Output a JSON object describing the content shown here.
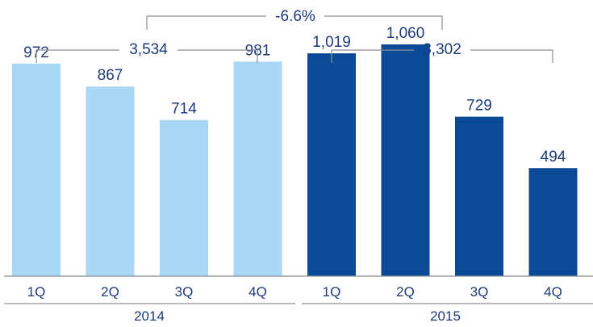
{
  "chart_data": {
    "type": "bar",
    "categories": [
      "1Q",
      "2Q",
      "3Q",
      "4Q",
      "1Q",
      "2Q",
      "3Q",
      "4Q"
    ],
    "groups": [
      {
        "name": "2014",
        "categories": [
          "1Q",
          "2Q",
          "3Q",
          "4Q"
        ],
        "values": [
          972,
          867,
          714,
          981
        ],
        "total": "3,534",
        "color": "#a8d8f5"
      },
      {
        "name": "2015",
        "categories": [
          "1Q",
          "2Q",
          "3Q",
          "4Q"
        ],
        "values": [
          1019,
          1060,
          729,
          494
        ],
        "total": "3,302",
        "color": "#0a4a96"
      }
    ],
    "value_labels": [
      "972",
      "867",
      "714",
      "981",
      "1,019",
      "1,060",
      "729",
      "494"
    ],
    "change_label": "-6.6%",
    "ylim": [
      0,
      1130
    ],
    "grid": false,
    "title": "",
    "xlabel": "",
    "ylabel": ""
  }
}
